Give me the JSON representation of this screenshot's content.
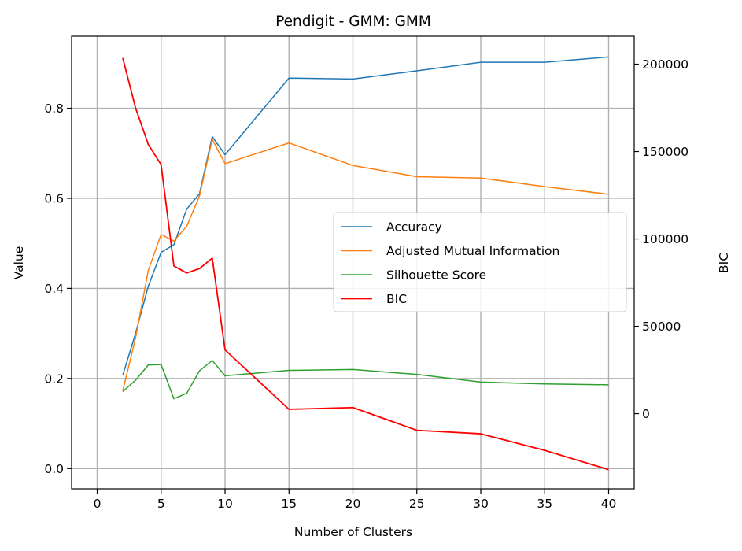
{
  "chart_data": {
    "type": "line",
    "title": "Pendigit - GMM: GMM",
    "xlabel": "Number of Clusters",
    "ylabel": "Value",
    "y2label": "BIC",
    "x": [
      2,
      3,
      4,
      5,
      6,
      7,
      8,
      9,
      10,
      15,
      20,
      25,
      30,
      35,
      40
    ],
    "xlim": [
      -2,
      42
    ],
    "ylim": [
      -0.045,
      0.96
    ],
    "y2lim": [
      -43000,
      216000
    ],
    "xticks": [
      0,
      5,
      10,
      15,
      20,
      25,
      30,
      35,
      40
    ],
    "yticks": [
      0.0,
      0.2,
      0.4,
      0.6,
      0.8
    ],
    "y2ticks": [
      0,
      50000,
      100000,
      150000,
      200000
    ],
    "grid": true,
    "legend_position": "center-right",
    "series": [
      {
        "name": "Accuracy",
        "axis": "left",
        "color": "#1f77b4",
        "values": [
          0.207,
          0.3,
          0.405,
          0.48,
          0.497,
          0.576,
          0.61,
          0.737,
          0.697,
          0.867,
          0.865,
          0.883,
          0.902,
          0.902,
          0.914
        ]
      },
      {
        "name": "Adjusted Mutual Information",
        "axis": "left",
        "color": "#ff7f0e",
        "values": [
          0.172,
          0.29,
          0.44,
          0.52,
          0.505,
          0.538,
          0.605,
          0.731,
          0.677,
          0.723,
          0.673,
          0.648,
          0.645,
          0.626,
          0.609
        ]
      },
      {
        "name": "Silhouette Score",
        "axis": "left",
        "color": "#2ca02c",
        "values": [
          0.171,
          0.196,
          0.23,
          0.231,
          0.155,
          0.167,
          0.217,
          0.24,
          0.206,
          0.218,
          0.22,
          0.209,
          0.192,
          0.188,
          0.186
        ]
      },
      {
        "name": "BIC",
        "axis": "right",
        "color": "#ff0000",
        "values": [
          203500,
          175000,
          154000,
          142500,
          84500,
          80500,
          83000,
          89000,
          36500,
          2500,
          3500,
          -9500,
          -11500,
          -21000,
          -32000
        ]
      }
    ]
  }
}
